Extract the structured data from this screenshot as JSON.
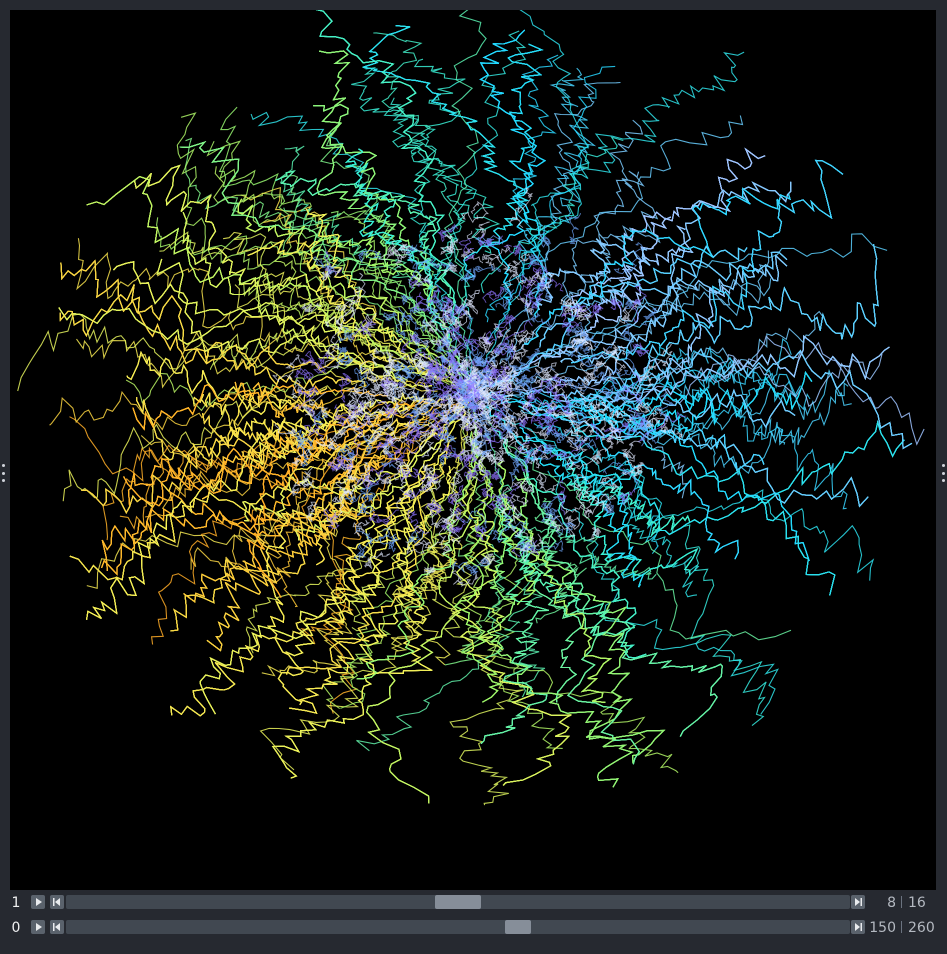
{
  "viewer": {
    "background_color": "#262930",
    "canvas_color": "#000000",
    "canvas_content": "tracks-visualization"
  },
  "dims_sliders": [
    {
      "axis_label": "1",
      "current": "8",
      "total": "16",
      "position_fraction": 0.5,
      "play_icon": "play-icon",
      "step_icon": "step-end-icon",
      "last_icon": "step-end-icon"
    },
    {
      "axis_label": "0",
      "current": "150",
      "total": "260",
      "position_fraction": 0.577,
      "play_icon": "play-icon",
      "step_icon": "step-end-icon",
      "last_icon": "step-end-icon"
    }
  ],
  "colors": {
    "track_colormap": [
      "#ff5a14",
      "#ffb429",
      "#f2f25a",
      "#9cf56a",
      "#3cf0d2",
      "#23d8ff",
      "#9fc6ff",
      "#8a66ff",
      "#ffffff"
    ],
    "slider_track": "#414851",
    "slider_thumb": "#868e99",
    "button": "#5a626c",
    "text_primary": "#f0f1f2",
    "text_secondary": "#b4b9c1"
  }
}
